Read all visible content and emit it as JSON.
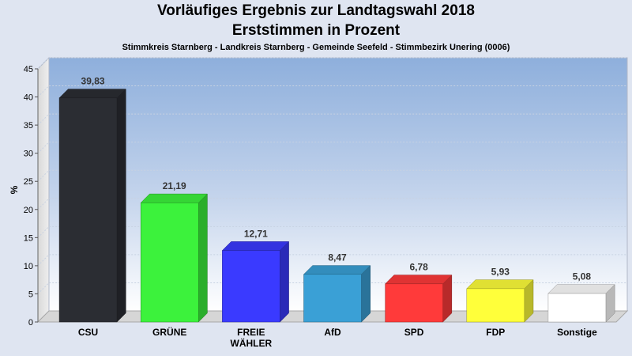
{
  "header": {
    "title_line1": "Vorläufiges Ergebnis zur Landtagswahl 2018",
    "title_line2": "Erststimmen in Prozent",
    "subtitle": "Stimmkreis Starnberg - Landkreis Starnberg - Gemeinde Seefeld - Stimmbezirk Unering (0006)"
  },
  "chart_data": {
    "type": "bar",
    "title": "Vorläufiges Ergebnis zur Landtagswahl 2018 Erststimmen in Prozent",
    "subtitle": "Stimmkreis Starnberg - Landkreis Starnberg - Gemeinde Seefeld - Stimmbezirk Unering (0006)",
    "xlabel": "",
    "ylabel": "%",
    "ylim": [
      0,
      45
    ],
    "yticks": [
      0,
      5,
      10,
      15,
      20,
      25,
      30,
      35,
      40,
      45
    ],
    "grid": true,
    "categories": [
      "CSU",
      "GRÜNE",
      "FREIE WÄHLER",
      "AfD",
      "SPD",
      "FDP",
      "Sonstige"
    ],
    "category_lines": [
      [
        "CSU"
      ],
      [
        "GRÜNE"
      ],
      [
        "FREIE",
        "WÄHLER"
      ],
      [
        "AfD"
      ],
      [
        "SPD"
      ],
      [
        "FDP"
      ],
      [
        "Sonstige"
      ]
    ],
    "values": [
      39.83,
      21.19,
      12.71,
      8.47,
      6.78,
      5.93,
      5.08
    ],
    "value_labels": [
      "39,83",
      "21,19",
      "12,71",
      "8,47",
      "6,78",
      "5,93",
      "5,08"
    ],
    "colors": [
      "#2b2d33",
      "#3cf23c",
      "#3a3aff",
      "#3aa0d6",
      "#ff3a3a",
      "#ffff3a",
      "#ffffff"
    ]
  }
}
